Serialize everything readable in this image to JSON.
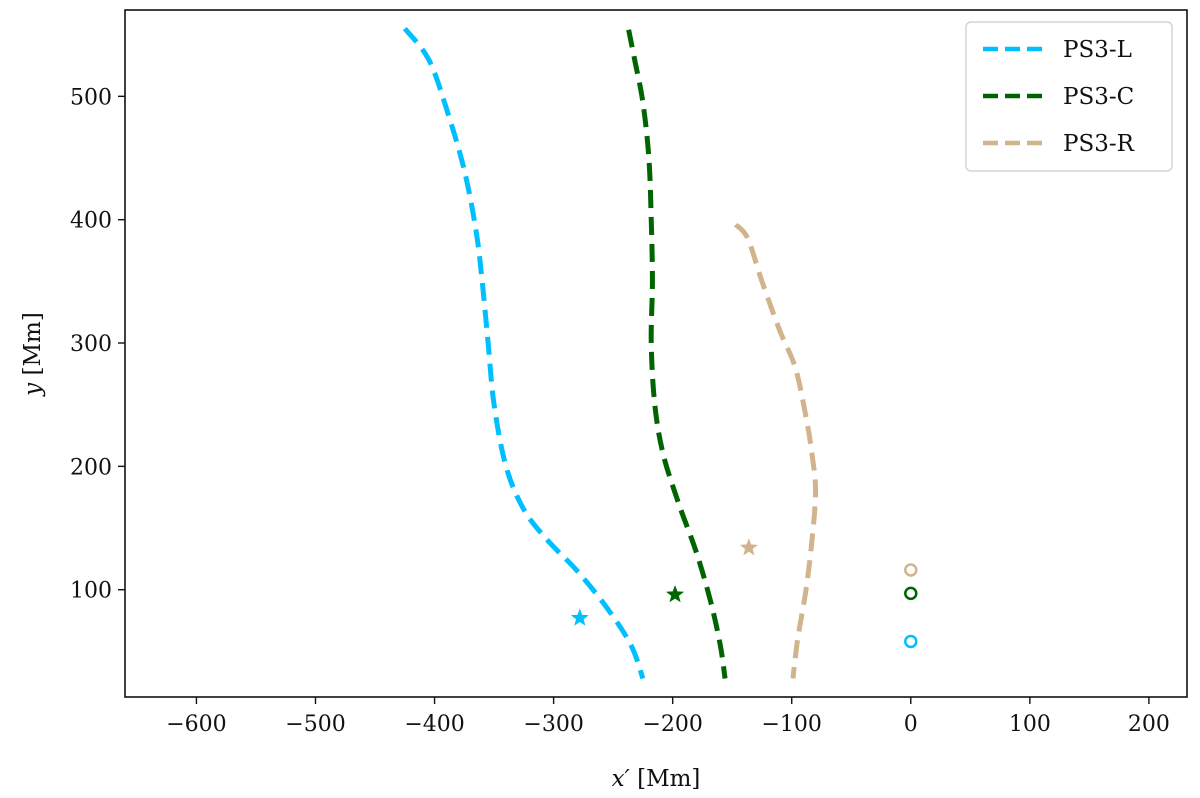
{
  "chart_data": {
    "type": "line",
    "xlabel_var": "x′",
    "xlabel_unit": " [Mm]",
    "ylabel_var": "y",
    "ylabel_unit": " [Mm]",
    "xlim": [
      -660,
      232
    ],
    "ylim": [
      13,
      570
    ],
    "xticks": [
      -600,
      -500,
      -400,
      -300,
      -200,
      -100,
      0,
      100,
      200
    ],
    "xtick_labels": [
      "−600",
      "−500",
      "−400",
      "−300",
      "−200",
      "−100",
      "0",
      "100",
      "200"
    ],
    "yticks": [
      100,
      200,
      300,
      400,
      500
    ],
    "ytick_labels": [
      "100",
      "200",
      "300",
      "400",
      "500"
    ],
    "grid": false,
    "legend_position": "top-right",
    "series": [
      {
        "name": "PS3-L",
        "color": "#00bfff",
        "line_style": "dashed",
        "x": [
          -425,
          -405,
          -390,
          -375,
          -365,
          -360,
          -355,
          -350,
          -340,
          -325,
          -305,
          -280,
          -255,
          -235,
          -225
        ],
        "y": [
          555,
          530,
          490,
          440,
          390,
          350,
          300,
          250,
          200,
          165,
          140,
          115,
          85,
          55,
          28
        ],
        "star_marker": {
          "x": -278,
          "y": 77
        },
        "circle_marker": {
          "x": 0,
          "y": 58
        }
      },
      {
        "name": "PS3-C",
        "color": "#006400",
        "line_style": "dashed",
        "x": [
          -237,
          -232,
          -225,
          -220,
          -218,
          -217,
          -218,
          -215,
          -208,
          -195,
          -180,
          -168,
          -160,
          -156
        ],
        "y": [
          554,
          530,
          495,
          450,
          400,
          350,
          300,
          250,
          210,
          170,
          130,
          90,
          55,
          28
        ],
        "star_marker": {
          "x": -198,
          "y": 96
        },
        "circle_marker": {
          "x": 0,
          "y": 97
        }
      },
      {
        "name": "PS3-R",
        "color": "#d2b48c",
        "line_style": "dashed",
        "x": [
          -147,
          -137,
          -125,
          -110,
          -97,
          -88,
          -83,
          -80,
          -83,
          -88,
          -95,
          -99
        ],
        "y": [
          396,
          385,
          350,
          310,
          280,
          240,
          210,
          180,
          140,
          100,
          60,
          28
        ],
        "star_marker": {
          "x": -136,
          "y": 134
        },
        "circle_marker": {
          "x": 0,
          "y": 116
        }
      }
    ]
  }
}
